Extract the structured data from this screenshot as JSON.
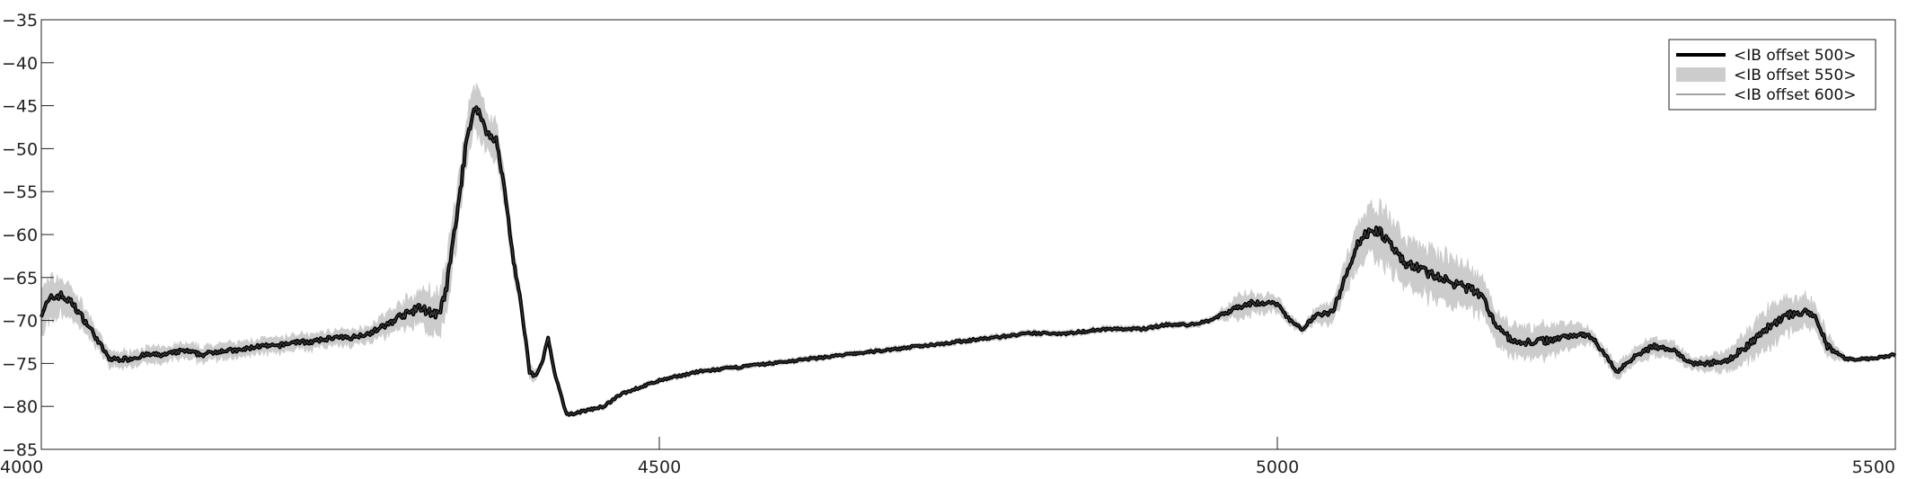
{
  "chart_data": {
    "type": "line",
    "title": "",
    "xlabel": "",
    "ylabel": "",
    "xlim": [
      4000,
      5500
    ],
    "ylim": [
      -85,
      -35
    ],
    "xticks": [
      4000,
      4500,
      5000,
      5500
    ],
    "yticks": [
      -35,
      -40,
      -45,
      -50,
      -55,
      -60,
      -65,
      -70,
      -75,
      -80,
      -85
    ],
    "grid": false,
    "legend": {
      "placement": "top-right"
    },
    "series": [
      {
        "name": "<IB offset 500>",
        "style": "thick-black-line",
        "color": "#000000",
        "x": [
          4000,
          4008,
          4015,
          4025,
          4040,
          4055,
          4070,
          4085,
          4100,
          4115,
          4130,
          4145,
          4160,
          4175,
          4190,
          4205,
          4220,
          4235,
          4250,
          4265,
          4280,
          4290,
          4300,
          4305,
          4315,
          4322,
          4328,
          4332,
          4338,
          4345,
          4352,
          4360,
          4368,
          4375,
          4382,
          4388,
          4395,
          4400,
          4405,
          4410,
          4415,
          4425,
          4440,
          4455,
          4470,
          4500,
          4530,
          4560,
          4590,
          4620,
          4650,
          4680,
          4710,
          4740,
          4770,
          4800,
          4830,
          4860,
          4890,
          4910,
          4930,
          4945,
          4960,
          4975,
          4990,
          5000,
          5010,
          5020,
          5030,
          5045,
          5055,
          5065,
          5075,
          5082,
          5090,
          5100,
          5115,
          5130,
          5150,
          5165,
          5175,
          5190,
          5210,
          5230,
          5245,
          5255,
          5260,
          5275,
          5290,
          5305,
          5320,
          5335,
          5350,
          5365,
          5380,
          5395,
          5410,
          5425,
          5435,
          5445,
          5460,
          5480,
          5500
        ],
        "y": [
          -69,
          -67.5,
          -67,
          -68,
          -71,
          -74.5,
          -74.5,
          -74,
          -74,
          -73.5,
          -74,
          -73.5,
          -73.5,
          -73,
          -73,
          -72.5,
          -72.5,
          -72,
          -72,
          -71.5,
          -70.5,
          -69.5,
          -69,
          -68.5,
          -69,
          -69.5,
          -66,
          -62,
          -56,
          -48,
          -45,
          -48,
          -49,
          -55,
          -63,
          -68,
          -76,
          -76.5,
          -75,
          -72,
          -76,
          -81,
          -80.5,
          -80,
          -78.5,
          -77,
          -76,
          -75.5,
          -75,
          -74.5,
          -74,
          -73.5,
          -73,
          -72.5,
          -72,
          -71.5,
          -71.5,
          -71,
          -71,
          -70.5,
          -70.5,
          -70,
          -69,
          -68,
          -68,
          -68,
          -70,
          -71,
          -69.5,
          -69,
          -65,
          -61,
          -59.5,
          -59.5,
          -61,
          -63,
          -64,
          -65,
          -66,
          -67,
          -70,
          -72.5,
          -72.5,
          -72,
          -71.5,
          -72,
          -73,
          -76,
          -74,
          -73,
          -73.5,
          -75,
          -75,
          -74.5,
          -73,
          -71,
          -69.5,
          -69,
          -69.5,
          -73,
          -74.5,
          -74.5,
          -74
        ]
      },
      {
        "name": "<IB offset 550>",
        "style": "light-gray-band",
        "color": "#cccccc",
        "spread_pattern": [
          [
            4000,
            3
          ],
          [
            4050,
            1
          ],
          [
            4260,
            1
          ],
          [
            4300,
            2
          ],
          [
            4330,
            3.5
          ],
          [
            4380,
            2
          ],
          [
            4405,
            0.3
          ],
          [
            4950,
            0.4
          ],
          [
            4970,
            1.5
          ],
          [
            5000,
            1
          ],
          [
            5020,
            0.5
          ],
          [
            5045,
            1.5
          ],
          [
            5075,
            3.5
          ],
          [
            5140,
            3
          ],
          [
            5180,
            2
          ],
          [
            5230,
            2
          ],
          [
            5255,
            0.8
          ],
          [
            5300,
            1.2
          ],
          [
            5340,
            0.8
          ],
          [
            5400,
            2.5
          ],
          [
            5445,
            1.5
          ],
          [
            5460,
            0.3
          ],
          [
            5500,
            0.3
          ]
        ]
      },
      {
        "name": "<IB offset 600>",
        "style": "thin-dark-line",
        "color": "#444444"
      }
    ]
  }
}
